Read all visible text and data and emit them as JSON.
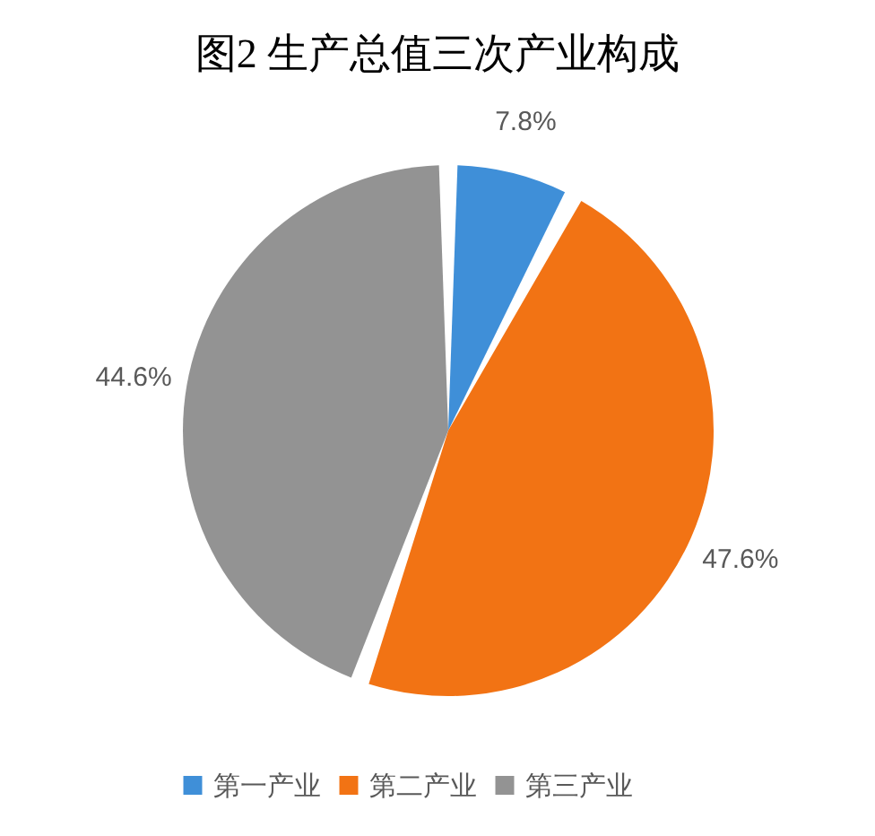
{
  "chart_data": {
    "type": "pie",
    "title": "图2 生产总值三次产业构成",
    "categories": [
      "第一产业",
      "第二产业",
      "第三产业"
    ],
    "values": [
      7.8,
      47.6,
      44.6
    ],
    "value_labels": [
      "7.8%",
      "47.6%",
      "44.6%"
    ],
    "colors": [
      "#3f8fd8",
      "#f27314",
      "#939393"
    ],
    "legend": "bottom"
  }
}
